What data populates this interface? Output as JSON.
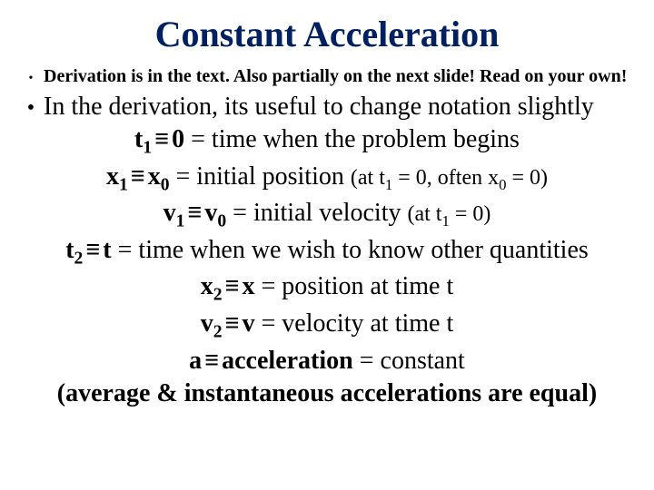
{
  "colors": {
    "title": "#002060",
    "text": "#000000",
    "background": "#ffffff"
  },
  "typography": {
    "family": "Times New Roman",
    "title_size_pt": 40,
    "body_size_pt": 28,
    "small_bullet_size_pt": 20,
    "paren_size_pt": 24
  },
  "title": "Constant Acceleration",
  "bullets": {
    "small": "Derivation is in the text. Also partially on the next slide! Read on your own!",
    "big": "In the derivation, its useful to change notation slightly"
  },
  "defs": [
    {
      "label_var": "t",
      "label_sub": "1",
      "label_rhs": "0",
      "desc": "= time when the problem begins",
      "paren": ""
    },
    {
      "label_var": "x",
      "label_sub": "1",
      "label_rhs_var": "x",
      "label_rhs_sub": "0",
      "desc": "= initial position",
      "paren_pre": "(at ",
      "paren_var1": "t",
      "paren_sub1": "1",
      "paren_mid": " = 0, often ",
      "paren_var2": "x",
      "paren_sub2": "0",
      "paren_post": " = 0)"
    },
    {
      "label_var": "v",
      "label_sub": "1",
      "label_rhs_var": "v",
      "label_rhs_sub": "0",
      "desc": "= initial velocity",
      "paren_pre": "(at ",
      "paren_var1": "t",
      "paren_sub1": "1",
      "paren_post": " = 0)"
    },
    {
      "label_var": "t",
      "label_sub": "2",
      "label_rhs": "t",
      "desc": "= time when we wish to know other quantities",
      "paren": ""
    },
    {
      "label_var": "x",
      "label_sub": "2",
      "label_rhs": "x",
      "desc": "= position at time t",
      "paren": ""
    },
    {
      "label_var": "v",
      "label_sub": "2",
      "label_rhs": "v",
      "desc": "= velocity at time t",
      "paren": ""
    },
    {
      "label_var": "a",
      "label_sub": "",
      "label_rhs": "acceleration",
      "desc": "= constant",
      "paren": ""
    }
  ],
  "ident_symbol": "≡",
  "final": "(average & instantaneous accelerations are equal)"
}
